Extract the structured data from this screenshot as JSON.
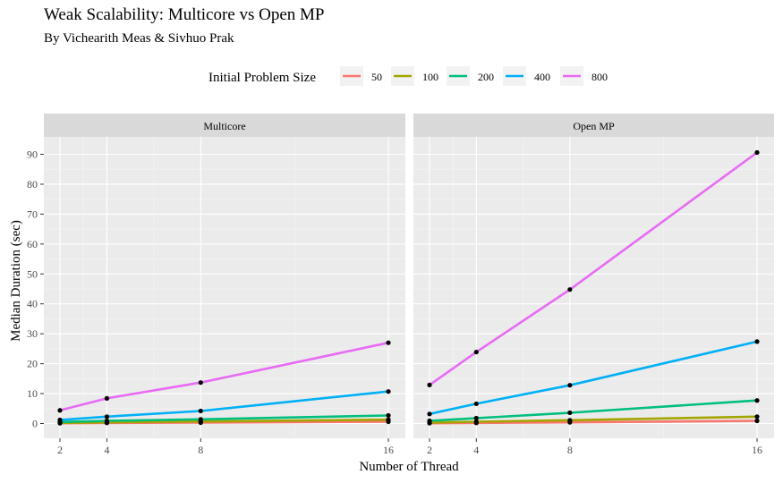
{
  "chart_data": {
    "type": "line",
    "title": "Weak Scalability: Multicore vs Open MP",
    "subtitle": "By Vichearith Meas & Sivhuo Prak",
    "xlabel": "Number of Thread",
    "ylabel": "Median Duration (sec)",
    "legend": {
      "title": "Initial Problem Size",
      "position": "top",
      "entries": [
        {
          "label": "50",
          "color": "#F8766D"
        },
        {
          "label": "100",
          "color": "#A3A500"
        },
        {
          "label": "200",
          "color": "#00BF7D"
        },
        {
          "label": "400",
          "color": "#00B0F6"
        },
        {
          "label": "800",
          "color": "#E76BF3"
        }
      ]
    },
    "x_ticks": [
      2,
      4,
      8,
      16
    ],
    "y_ticks": [
      0,
      10,
      20,
      30,
      40,
      50,
      60,
      70,
      80,
      90
    ],
    "xlim": [
      2,
      16
    ],
    "ylim": [
      0,
      90
    ],
    "grid": true,
    "panels": [
      {
        "title": "Multicore",
        "x": [
          2,
          4,
          8,
          16
        ],
        "series": [
          {
            "name": "50",
            "values": [
              0.1,
              0.2,
              0.3,
              0.6
            ]
          },
          {
            "name": "100",
            "values": [
              0.2,
              0.4,
              0.7,
              1.3
            ]
          },
          {
            "name": "200",
            "values": [
              0.5,
              0.9,
              1.4,
              2.7
            ]
          },
          {
            "name": "400",
            "values": [
              1.2,
              2.3,
              4.2,
              10.7
            ]
          },
          {
            "name": "800",
            "values": [
              4.4,
              8.4,
              13.7,
              27.0
            ]
          }
        ]
      },
      {
        "title": "Open MP",
        "x": [
          2,
          4,
          8,
          16
        ],
        "series": [
          {
            "name": "50",
            "values": [
              0.1,
              0.2,
              0.4,
              0.9
            ]
          },
          {
            "name": "100",
            "values": [
              0.3,
              0.6,
              1.1,
              2.3
            ]
          },
          {
            "name": "200",
            "values": [
              0.9,
              1.8,
              3.6,
              7.7
            ]
          },
          {
            "name": "400",
            "values": [
              3.2,
              6.6,
              12.8,
              27.4
            ]
          },
          {
            "name": "800",
            "values": [
              12.9,
              23.9,
              44.8,
              90.6
            ]
          }
        ]
      }
    ]
  }
}
